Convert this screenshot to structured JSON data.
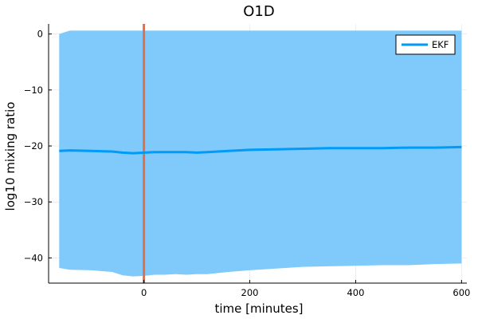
{
  "chart_data": {
    "type": "line",
    "title": "O1D",
    "xlabel": "time [minutes]",
    "ylabel": "log10 mixing ratio",
    "xlim": [
      -180,
      610
    ],
    "ylim": [
      -44.5,
      1.8
    ],
    "xticks": [
      0,
      200,
      400,
      600
    ],
    "xtick_labels": [
      "0",
      "200",
      "400",
      "600"
    ],
    "yticks": [
      0,
      -10,
      -20,
      -30,
      -40
    ],
    "ytick_labels": [
      "0",
      "−10",
      "−20",
      "−30",
      "−40"
    ],
    "grid": true,
    "legend": {
      "position": "top-right"
    },
    "vline": {
      "x": 0,
      "color": "#e26f46"
    },
    "band": {
      "color": "#80c9fb",
      "x": [
        -160,
        -140,
        -100,
        -60,
        -40,
        -20,
        0,
        20,
        40,
        60,
        80,
        100,
        120,
        160,
        200,
        250,
        300,
        350,
        400,
        450,
        500,
        550,
        600
      ],
      "upper": [
        0.0,
        0.6,
        0.6,
        0.6,
        0.6,
        0.6,
        0.6,
        0.6,
        0.6,
        0.6,
        0.6,
        0.6,
        0.6,
        0.6,
        0.6,
        0.6,
        0.6,
        0.6,
        0.6,
        0.6,
        0.6,
        0.6,
        0.6
      ],
      "lower": [
        -41.8,
        -42.1,
        -42.2,
        -42.5,
        -43.1,
        -43.3,
        -43.2,
        -43.0,
        -43.0,
        -42.9,
        -43.0,
        -42.9,
        -42.9,
        -42.5,
        -42.2,
        -41.9,
        -41.6,
        -41.5,
        -41.4,
        -41.3,
        -41.3,
        -41.1,
        -41.0
      ]
    },
    "series": [
      {
        "name": "EKF",
        "color": "#009af9",
        "x": [
          -160,
          -140,
          -100,
          -60,
          -40,
          -20,
          0,
          20,
          40,
          60,
          80,
          100,
          120,
          160,
          200,
          250,
          300,
          350,
          400,
          450,
          500,
          550,
          600
        ],
        "values": [
          -20.9,
          -20.8,
          -20.9,
          -21.0,
          -21.2,
          -21.3,
          -21.2,
          -21.1,
          -21.1,
          -21.1,
          -21.1,
          -21.2,
          -21.1,
          -20.9,
          -20.7,
          -20.6,
          -20.5,
          -20.4,
          -20.4,
          -20.4,
          -20.3,
          -20.3,
          -20.2
        ]
      }
    ]
  }
}
